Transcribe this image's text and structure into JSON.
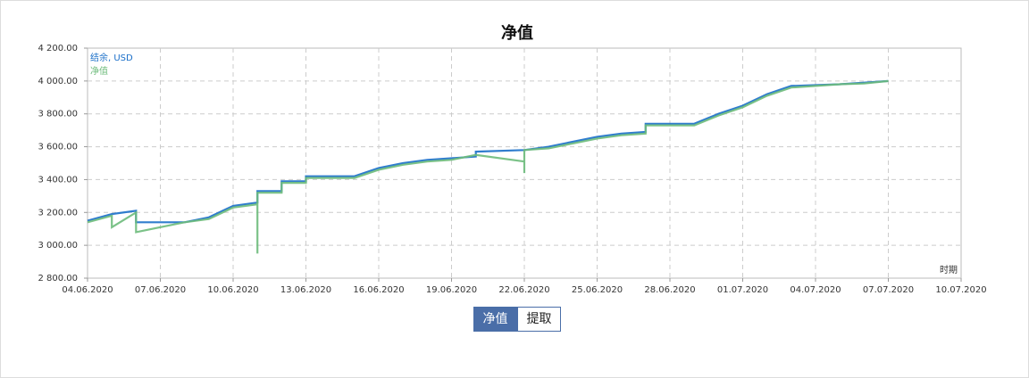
{
  "chart_data": {
    "type": "line",
    "title": "净值",
    "x_label": "时期",
    "xlim": [
      "04.06.2020",
      "10.07.2020"
    ],
    "xticks": [
      "04.06.2020",
      "07.06.2020",
      "10.06.2020",
      "13.06.2020",
      "16.06.2020",
      "19.06.2020",
      "22.06.2020",
      "25.06.2020",
      "28.06.2020",
      "01.07.2020",
      "04.07.2020",
      "07.07.2020",
      "10.07.2020"
    ],
    "ylim": [
      2800,
      4200
    ],
    "yticks": [
      {
        "value": 2800,
        "label": "2 800.00"
      },
      {
        "value": 3000,
        "label": "3 000.00"
      },
      {
        "value": 3200,
        "label": "3 200.00"
      },
      {
        "value": 3400,
        "label": "3 400.00"
      },
      {
        "value": 3600,
        "label": "3 600.00"
      },
      {
        "value": 3800,
        "label": "3 800.00"
      },
      {
        "value": 4000,
        "label": "4 000.00"
      },
      {
        "value": 4200,
        "label": "4 200.00"
      }
    ],
    "grid": true,
    "series": [
      {
        "name": "结余, USD",
        "color": "#1a6fc9",
        "x": [
          "04.06.2020",
          "05.06.2020",
          "06.06.2020",
          "06.06.2020",
          "08.06.2020",
          "09.06.2020",
          "10.06.2020",
          "11.06.2020",
          "11.06.2020",
          "12.06.2020",
          "12.06.2020",
          "13.06.2020",
          "13.06.2020",
          "15.06.2020",
          "16.06.2020",
          "17.06.2020",
          "18.06.2020",
          "19.06.2020",
          "20.06.2020",
          "20.06.2020",
          "22.06.2020",
          "23.06.2020",
          "24.06.2020",
          "25.06.2020",
          "26.06.2020",
          "27.06.2020",
          "27.06.2020",
          "29.06.2020",
          "30.06.2020",
          "01.07.2020",
          "02.07.2020",
          "03.07.2020",
          "05.07.2020",
          "06.07.2020",
          "07.07.2020"
        ],
        "values": [
          3150,
          3190,
          3210,
          3140,
          3140,
          3170,
          3240,
          3260,
          3330,
          3330,
          3390,
          3390,
          3420,
          3420,
          3470,
          3500,
          3520,
          3530,
          3540,
          3570,
          3580,
          3600,
          3630,
          3660,
          3680,
          3690,
          3740,
          3740,
          3800,
          3850,
          3920,
          3970,
          3980,
          3990,
          4000
        ]
      },
      {
        "name": "净值",
        "color": "#6dbb7b",
        "x": [
          "04.06.2020",
          "05.06.2020",
          "05.06.2020",
          "06.06.2020",
          "06.06.2020",
          "08.06.2020",
          "09.06.2020",
          "10.06.2020",
          "11.06.2020",
          "11.06.2020",
          "11.06.2020",
          "12.06.2020",
          "12.06.2020",
          "13.06.2020",
          "13.06.2020",
          "15.06.2020",
          "16.06.2020",
          "17.06.2020",
          "18.06.2020",
          "19.06.2020",
          "20.06.2020",
          "22.06.2020",
          "22.06.2020",
          "22.06.2020",
          "23.06.2020",
          "24.06.2020",
          "25.06.2020",
          "26.06.2020",
          "27.06.2020",
          "27.06.2020",
          "29.06.2020",
          "30.06.2020",
          "01.07.2020",
          "02.07.2020",
          "03.07.2020",
          "05.07.2020",
          "06.07.2020",
          "07.07.2020"
        ],
        "values": [
          3140,
          3180,
          3110,
          3200,
          3080,
          3140,
          3160,
          3230,
          3250,
          2950,
          3320,
          3320,
          3380,
          3380,
          3410,
          3410,
          3460,
          3490,
          3510,
          3520,
          3550,
          3510,
          3440,
          3580,
          3590,
          3620,
          3650,
          3670,
          3680,
          3730,
          3730,
          3790,
          3840,
          3910,
          3960,
          3980,
          3985,
          4000
        ]
      }
    ],
    "buttons": [
      "净值",
      "提取"
    ]
  }
}
